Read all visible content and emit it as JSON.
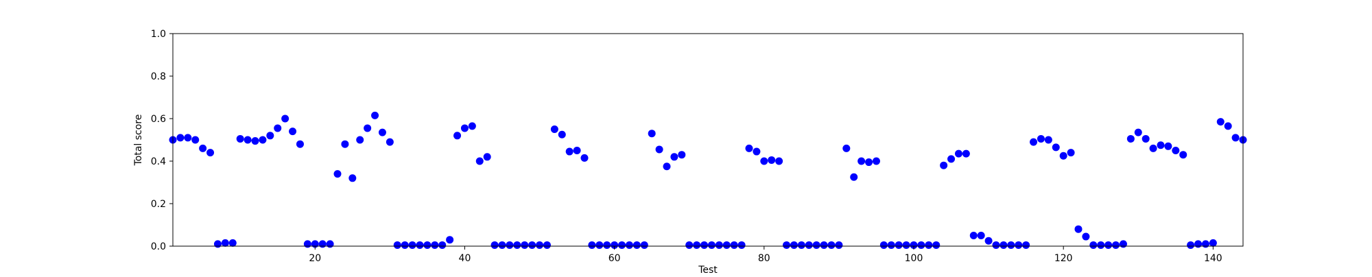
{
  "chart_data": {
    "type": "scatter",
    "title": "",
    "xlabel": "Test",
    "ylabel": "Total score",
    "xlim": [
      1,
      144
    ],
    "ylim": [
      0,
      1.0
    ],
    "x_ticks": [
      20,
      40,
      60,
      80,
      100,
      120,
      140
    ],
    "y_ticks": [
      0.0,
      0.2,
      0.4,
      0.6,
      0.8,
      1.0
    ],
    "x_tick_labels": [
      "20",
      "40",
      "60",
      "80",
      "100",
      "120",
      "140"
    ],
    "y_tick_labels": [
      "0.0",
      "0.2",
      "0.4",
      "0.6",
      "0.8",
      "1.0"
    ],
    "grid": false,
    "marker_color": "#0000ff",
    "series": [
      {
        "x": [
          1,
          2,
          3,
          4,
          5,
          6,
          7,
          8,
          9,
          10,
          11,
          12,
          13,
          14,
          15,
          16,
          17,
          18,
          19,
          20,
          21,
          22,
          23,
          24,
          25,
          26,
          27,
          28,
          29,
          30,
          31,
          32,
          33,
          34,
          35,
          36,
          37,
          38,
          39,
          40,
          41,
          42,
          43,
          44,
          45,
          46,
          47,
          48,
          49,
          50,
          51,
          52,
          53,
          54,
          55,
          56,
          57,
          58,
          59,
          60,
          61,
          62,
          63,
          64,
          65,
          66,
          67,
          68,
          69,
          70,
          71,
          72,
          73,
          74,
          75,
          76,
          77,
          78,
          79,
          80,
          81,
          82,
          83,
          84,
          85,
          86,
          87,
          88,
          89,
          90,
          91,
          92,
          93,
          94,
          95,
          96,
          97,
          98,
          99,
          100,
          101,
          102,
          103,
          104,
          105,
          106,
          107,
          108,
          109,
          110,
          111,
          112,
          113,
          114,
          115,
          116,
          117,
          118,
          119,
          120,
          121,
          122,
          123,
          124,
          125,
          126,
          127,
          128,
          129,
          130,
          131,
          132,
          133,
          134,
          135,
          136,
          137,
          138,
          139,
          140,
          141,
          142,
          143,
          144
        ],
        "y": [
          0.5,
          0.51,
          0.51,
          0.5,
          0.46,
          0.44,
          0.01,
          0.015,
          0.015,
          0.505,
          0.5,
          0.495,
          0.5,
          0.52,
          0.555,
          0.6,
          0.54,
          0.48,
          0.01,
          0.01,
          0.01,
          0.01,
          0.34,
          0.48,
          0.32,
          0.5,
          0.555,
          0.615,
          0.535,
          0.49,
          0.005,
          0.005,
          0.005,
          0.005,
          0.005,
          0.005,
          0.005,
          0.03,
          0.52,
          0.555,
          0.565,
          0.4,
          0.42,
          0.005,
          0.005,
          0.005,
          0.005,
          0.005,
          0.005,
          0.005,
          0.005,
          0.55,
          0.525,
          0.445,
          0.45,
          0.415,
          0.005,
          0.005,
          0.005,
          0.005,
          0.005,
          0.005,
          0.005,
          0.005,
          0.53,
          0.455,
          0.375,
          0.42,
          0.43,
          0.005,
          0.005,
          0.005,
          0.005,
          0.005,
          0.005,
          0.005,
          0.005,
          0.46,
          0.445,
          0.4,
          0.405,
          0.4,
          0.005,
          0.005,
          0.005,
          0.005,
          0.005,
          0.005,
          0.005,
          0.005,
          0.46,
          0.325,
          0.4,
          0.395,
          0.4,
          0.005,
          0.005,
          0.005,
          0.005,
          0.005,
          0.005,
          0.005,
          0.005,
          0.38,
          0.41,
          0.435,
          0.435,
          0.05,
          0.05,
          0.025,
          0.005,
          0.005,
          0.005,
          0.005,
          0.005,
          0.49,
          0.505,
          0.5,
          0.465,
          0.425,
          0.44,
          0.08,
          0.045,
          0.005,
          0.005,
          0.005,
          0.005,
          0.01,
          0.505,
          0.535,
          0.505,
          0.46,
          0.475,
          0.47,
          0.45,
          0.43,
          0.005,
          0.01,
          0.01,
          0.015,
          0.585,
          0.565,
          0.51,
          0.5
        ]
      }
    ]
  }
}
